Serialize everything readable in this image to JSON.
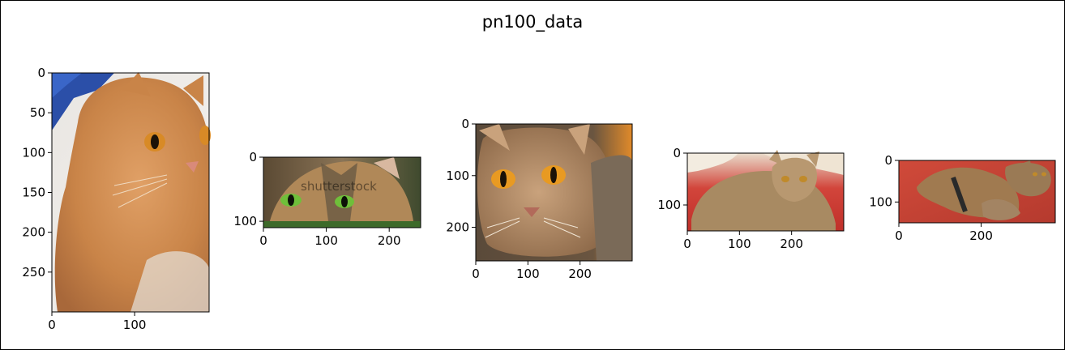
{
  "figure": {
    "title": "pn100_data"
  },
  "chart_data": [
    {
      "type": "image",
      "image": "orange tabby cat lying on white blanket, blue cloth at top-left",
      "width": 190,
      "height": 300,
      "xticks": [
        0,
        100
      ],
      "yticks": [
        0,
        50,
        100,
        150,
        200,
        250
      ]
    },
    {
      "type": "image",
      "image": "close-up of tabby cat with green eyes, shutterstock watermark",
      "width": 250,
      "height": 110,
      "xticks": [
        0,
        100,
        200
      ],
      "yticks": [
        0,
        100
      ],
      "watermark": "shutterstock"
    },
    {
      "type": "image",
      "image": "ruddy abyssinian cat face with orange eyes",
      "width": 300,
      "height": 265,
      "xticks": [
        0,
        100,
        200
      ],
      "yticks": [
        0,
        100,
        200
      ]
    },
    {
      "type": "image",
      "image": "abyssinian cat lying on red fabric",
      "width": 300,
      "height": 150,
      "xticks": [
        0,
        100,
        200
      ],
      "yticks": [
        0,
        100
      ]
    },
    {
      "type": "image",
      "image": "two abyssinian cats playing on red blanket",
      "width": 380,
      "height": 150,
      "xticks": [
        0,
        200
      ],
      "yticks": [
        0,
        100
      ]
    }
  ]
}
